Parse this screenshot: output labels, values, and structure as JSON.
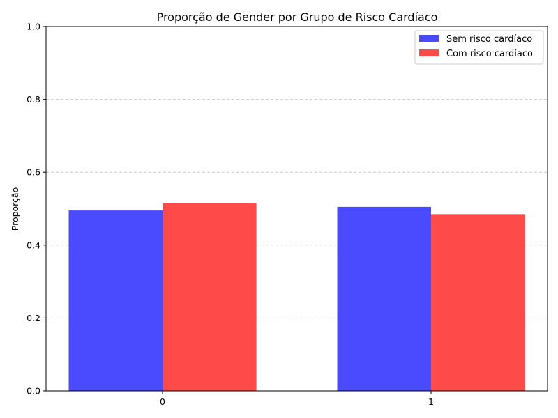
{
  "chart_data": {
    "type": "bar",
    "title": "Proporção de Gender por Grupo de Risco Cardíaco",
    "xlabel": "",
    "ylabel": "Proporção",
    "categories": [
      "0",
      "1"
    ],
    "series": [
      {
        "name": "Sem risco cardíaco",
        "color": "#4a4aff",
        "values": [
          0.495,
          0.505
        ]
      },
      {
        "name": "Com risco cardíaco",
        "color": "#ff4a4a",
        "values": [
          0.515,
          0.485
        ]
      }
    ],
    "ylim": [
      0,
      1.0
    ],
    "yticks": [
      "0.0",
      "0.2",
      "0.4",
      "0.6",
      "0.8",
      "1.0"
    ],
    "grid": "y-dashed",
    "legend_position": "top-right"
  }
}
